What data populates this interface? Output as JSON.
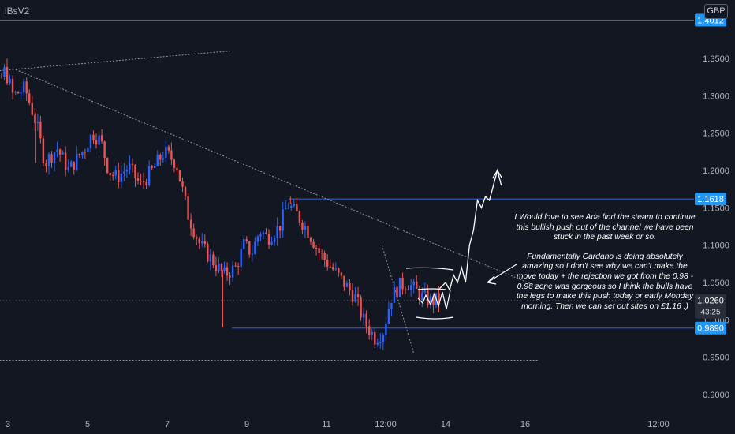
{
  "header": {
    "symbol": "iBsV2",
    "currency": "GBP"
  },
  "annotation": {
    "paragraph1": "I Would love to see Ada find the steam to continue this bullish push out of the channel we have been stuck in the past week or so.",
    "paragraph2": "Fundamentally Cardano is doing absolutely amazing so I don't see why we can't make the move today + the rejection we got from the 0.98 - 0.96 zone was gorgeous so I think the bulls have the legs to make this push today or early Monday morning. Then we can set out sites on £1.16 :)"
  },
  "colors": {
    "background": "#131722",
    "up": "#2962ff",
    "down": "#ef5350",
    "level": "#2962ff",
    "label_blue": "#2196f3",
    "axis_text": "#b2b5be",
    "annotation": "#ffffff",
    "trendline": "#9598a1"
  },
  "chart_data": {
    "type": "candlestick",
    "xlabel": "",
    "ylabel": "",
    "y_ticks": [
      "1.3500",
      "1.3000",
      "1.2500",
      "1.2000",
      "1.1500",
      "1.1000",
      "1.0500",
      "1.0000",
      "0.9500",
      "0.9000"
    ],
    "x_ticks": [
      "3",
      "5",
      "7",
      "9",
      "11",
      "12:00",
      "14",
      "16",
      "12:00"
    ],
    "ylim": [
      0.87,
      1.42
    ],
    "grid": false,
    "levels": [
      {
        "label": "1.4012",
        "value": 1.4012
      },
      {
        "label": "1.1618",
        "value": 1.1618
      },
      {
        "label": "0.9890",
        "value": 0.989
      }
    ],
    "current_price": {
      "label": "1.0260",
      "value": 1.026,
      "countdown": "43:25"
    },
    "price_path": [
      [
        2.0,
        1.23
      ],
      [
        2.5,
        1.26
      ],
      [
        2.8,
        1.31
      ],
      [
        3.0,
        1.335
      ],
      [
        3.2,
        1.3
      ],
      [
        3.5,
        1.31
      ],
      [
        3.8,
        1.26
      ],
      [
        4.0,
        1.21
      ],
      [
        4.3,
        1.23
      ],
      [
        4.6,
        1.2
      ],
      [
        4.8,
        1.215
      ],
      [
        5.0,
        1.23
      ],
      [
        5.2,
        1.25
      ],
      [
        5.4,
        1.24
      ],
      [
        5.6,
        1.2
      ],
      [
        5.8,
        1.19
      ],
      [
        6.1,
        1.205
      ],
      [
        6.4,
        1.18
      ],
      [
        6.7,
        1.2
      ],
      [
        7.0,
        1.225
      ],
      [
        7.3,
        1.21
      ],
      [
        7.6,
        1.14
      ],
      [
        7.9,
        1.1
      ],
      [
        8.2,
        1.08
      ],
      [
        8.5,
        1.06
      ],
      [
        8.8,
        1.07
      ],
      [
        9.0,
        1.1
      ],
      [
        9.2,
        1.09
      ],
      [
        9.4,
        1.12
      ],
      [
        9.6,
        1.11
      ],
      [
        9.9,
        1.125
      ],
      [
        10.1,
        1.155
      ],
      [
        10.35,
        1.14
      ],
      [
        10.6,
        1.12
      ],
      [
        10.9,
        1.09
      ],
      [
        11.2,
        1.07
      ],
      [
        11.5,
        1.05
      ],
      [
        11.8,
        1.03
      ],
      [
        12.0,
        1.0
      ],
      [
        12.3,
        0.975
      ],
      [
        12.5,
        0.985
      ],
      [
        12.7,
        1.03
      ],
      [
        12.9,
        1.045
      ],
      [
        13.1,
        1.05
      ],
      [
        13.3,
        1.04
      ],
      [
        13.5,
        1.03
      ],
      [
        13.7,
        1.025
      ],
      [
        13.85,
        1.026
      ]
    ],
    "spikes": [
      [
        8.4,
        0.99
      ],
      [
        3.7,
        1.21
      ],
      [
        10.1,
        1.165
      ]
    ],
    "trendlines": [
      {
        "style": "dotted",
        "from": [
          2.0,
          1.33
        ],
        "to": [
          8.6,
          1.36
        ]
      },
      {
        "style": "dotted",
        "from": [
          3.2,
          1.335
        ],
        "to": [
          16.6,
          1.038
        ]
      },
      {
        "style": "dotted",
        "from": [
          12.4,
          1.1
        ],
        "to": [
          13.2,
          0.955
        ]
      },
      {
        "style": "dotted",
        "from": [
          2.0,
          0.946
        ],
        "to": [
          16.35,
          0.946
        ]
      }
    ],
    "drawings": {
      "projection_arrow": [
        [
          13.85,
          1.042
        ],
        [
          14.0,
          1.05
        ],
        [
          14.1,
          1.04
        ],
        [
          14.2,
          1.06
        ],
        [
          14.3,
          1.05
        ],
        [
          14.4,
          1.07
        ],
        [
          14.5,
          1.05
        ],
        [
          14.6,
          1.1
        ],
        [
          14.7,
          1.12
        ],
        [
          14.8,
          1.16
        ],
        [
          14.9,
          1.15
        ],
        [
          15.0,
          1.165
        ],
        [
          15.1,
          1.16
        ],
        [
          15.2,
          1.18
        ],
        [
          15.3,
          1.2
        ],
        [
          15.4,
          1.18
        ]
      ],
      "callout_arrow": {
        "from": [
          15.8,
          1.075
        ],
        "to": [
          15.05,
          1.05
        ]
      }
    }
  }
}
